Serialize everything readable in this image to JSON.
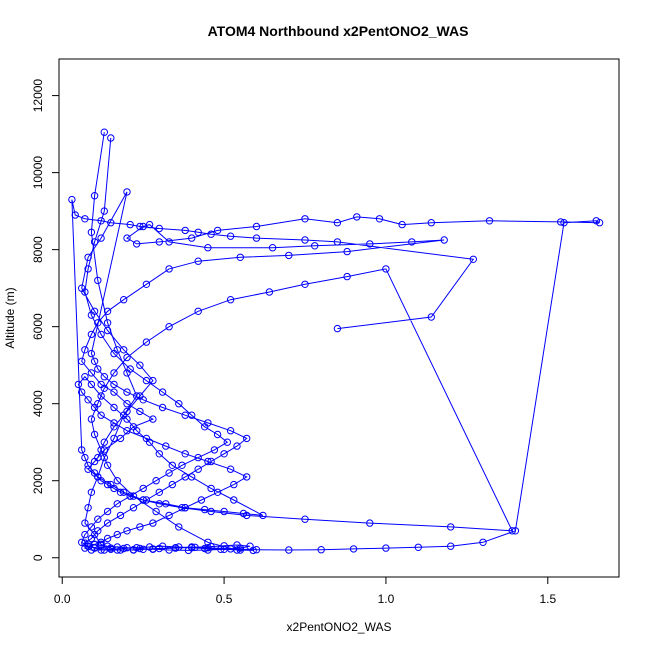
{
  "chart_data": {
    "type": "line",
    "title": "ATOM4 Northbound x2PentONO2_WAS",
    "xlabel": "x2PentONO2_WAS",
    "ylabel": "Altitude (m)",
    "xlim": [
      0.0,
      1.7
    ],
    "ylim": [
      0,
      13000
    ],
    "x_ticks": [
      0.0,
      0.5,
      1.0,
      1.5
    ],
    "x_tick_labels": [
      "0.0",
      "0.5",
      "1.0",
      "1.5"
    ],
    "y_ticks": [
      0,
      2000,
      4000,
      6000,
      8000,
      10000,
      12000
    ],
    "y_tick_labels": [
      "0",
      "2000",
      "4000",
      "6000",
      "8000",
      "10000",
      "12000"
    ],
    "grid": false,
    "legend": "none",
    "colors": {
      "series": "#0000ff",
      "axes": "#000000",
      "background": "#ffffff"
    },
    "series": [
      {
        "marker": "open-circle",
        "x": [
          0.13,
          0.1,
          0.09,
          0.11,
          0.14,
          0.17,
          0.2,
          0.23,
          0.19,
          0.16,
          0.13,
          0.11,
          0.09,
          0.08,
          0.07,
          0.1,
          0.12,
          0.15,
          0.18,
          0.22,
          0.25,
          0.3,
          0.35,
          0.4,
          0.45,
          0.52,
          0.6,
          0.7,
          0.8,
          0.9,
          1.0,
          1.1,
          1.2,
          1.3,
          1.4,
          1.55,
          1.65,
          1.66,
          1.54,
          1.32,
          1.14,
          1.05,
          0.98,
          0.91,
          0.85,
          0.75,
          0.6,
          0.48,
          0.4,
          0.3,
          0.23,
          0.2,
          0.25,
          0.27,
          0.33,
          0.45,
          0.65,
          0.78,
          0.95,
          1.08,
          1.18,
          0.88,
          0.7,
          0.55,
          0.42,
          0.33,
          0.26,
          0.19,
          0.14,
          0.11,
          0.09,
          0.07,
          0.06,
          0.09,
          0.12,
          0.16,
          0.2,
          0.24,
          0.28,
          0.22,
          0.18,
          0.13,
          0.1,
          0.08,
          0.11,
          0.15,
          0.19,
          0.25,
          0.32,
          0.38,
          0.44,
          0.5,
          0.56,
          0.62,
          0.53,
          0.46,
          0.4,
          0.34,
          0.3,
          0.27,
          0.23,
          0.2,
          0.16,
          0.12,
          0.09,
          0.07,
          0.05,
          0.06,
          0.08,
          0.1,
          0.12,
          0.16,
          0.2,
          0.26,
          0.32,
          0.38,
          0.45,
          0.52,
          0.57,
          0.53,
          0.48,
          0.43,
          0.38,
          0.33,
          0.28,
          0.24,
          0.2,
          0.17,
          0.14,
          0.12,
          0.1,
          0.08,
          0.07,
          0.09,
          0.12,
          0.15,
          0.19,
          0.23,
          0.27,
          0.31,
          0.36,
          0.4,
          0.44,
          0.49,
          0.55,
          0.59,
          0.54,
          0.45,
          0.36,
          0.29,
          0.22,
          0.17,
          0.14,
          0.12,
          0.1,
          0.09,
          0.11,
          0.13,
          0.16,
          0.2,
          0.26,
          0.33,
          0.42,
          0.52,
          0.64,
          0.75,
          0.88,
          1.0,
          1.39,
          1.2,
          0.95,
          0.75,
          0.57,
          0.46,
          0.37,
          0.3,
          0.25,
          0.21,
          0.18,
          0.16,
          0.14,
          0.12,
          0.1,
          0.08,
          0.07,
          0.06,
          0.03,
          0.04,
          0.07,
          0.12,
          0.15,
          0.21,
          0.24,
          0.3,
          0.38,
          0.42,
          0.46,
          0.52,
          0.6,
          0.75,
          0.85,
          1.27,
          1.14,
          0.85
        ],
        "y": [
          11050,
          9400,
          8450,
          7200,
          6100,
          5400,
          4800,
          4200,
          3700,
          3100,
          2600,
          2100,
          1700,
          1300,
          900,
          600,
          350,
          250,
          200,
          200,
          220,
          240,
          260,
          280,
          260,
          230,
          210,
          200,
          210,
          230,
          250,
          270,
          300,
          400,
          700,
          8700,
          8750,
          8700,
          8720,
          8750,
          8700,
          8650,
          8800,
          8850,
          8700,
          8800,
          8600,
          8500,
          8300,
          8200,
          8150,
          8300,
          8600,
          8650,
          8200,
          8050,
          8050,
          8100,
          8150,
          8200,
          8250,
          7950,
          7850,
          7800,
          7700,
          7500,
          7100,
          6700,
          6400,
          6100,
          5800,
          5400,
          5100,
          4800,
          4500,
          4300,
          4000,
          3800,
          3600,
          3400,
          3100,
          2800,
          2500,
          2300,
          2100,
          1900,
          1700,
          1500,
          1400,
          1300,
          1250,
          1200,
          1150,
          1100,
          1500,
          1800,
          2100,
          2400,
          2700,
          3000,
          3300,
          3600,
          3900,
          4200,
          4500,
          4700,
          4500,
          4300,
          4100,
          3900,
          3700,
          3500,
          3300,
          3100,
          2900,
          2700,
          2500,
          2300,
          2100,
          1900,
          1700,
          1500,
          1300,
          1100,
          900,
          800,
          700,
          600,
          500,
          400,
          350,
          300,
          250,
          200,
          200,
          220,
          240,
          260,
          280,
          300,
          280,
          260,
          240,
          220,
          200,
          190,
          200,
          400,
          800,
          1200,
          1600,
          2000,
          2400,
          2800,
          3200,
          3600,
          4000,
          4400,
          4800,
          5200,
          5600,
          6000,
          6400,
          6700,
          6900,
          7100,
          7300,
          7500,
          700,
          800,
          900,
          1000,
          1100,
          1200,
          1300,
          1400,
          1500,
          1600,
          1700,
          1800,
          1900,
          2000,
          2200,
          2400,
          2600,
          2800,
          9300,
          8900,
          8800,
          8750,
          8700,
          8650,
          8600,
          8550,
          8500,
          8450,
          8400,
          8350,
          8300,
          8250,
          8200,
          7750,
          6250,
          5950
        ]
      },
      {
        "marker": "open-circle",
        "x": [
          0.15,
          0.13,
          0.1,
          0.08,
          0.07,
          0.09,
          0.12,
          0.16,
          0.21,
          0.26,
          0.31,
          0.36,
          0.4,
          0.44,
          0.48,
          0.51,
          0.47,
          0.42,
          0.37,
          0.33,
          0.29,
          0.25,
          0.21,
          0.17,
          0.14,
          0.11,
          0.09,
          0.07,
          0.06,
          0.08,
          0.1,
          0.13,
          0.17,
          0.22,
          0.28,
          0.35,
          0.41,
          0.46,
          0.5,
          0.54,
          0.58,
          0.55,
          0.5,
          0.45,
          0.39,
          0.33,
          0.28,
          0.24,
          0.2,
          0.17,
          0.14,
          0.12,
          0.1,
          0.08,
          0.07,
          0.09,
          0.11,
          0.14,
          0.18,
          0.22,
          0.26,
          0.3,
          0.34,
          0.38,
          0.42,
          0.46,
          0.5,
          0.54,
          0.57,
          0.52,
          0.45,
          0.38,
          0.31,
          0.25,
          0.2,
          0.16,
          0.13,
          0.11,
          0.1,
          0.09,
          0.2,
          0.12,
          0.08,
          0.06,
          0.1,
          0.14,
          0.19,
          0.24,
          0.28,
          0.24,
          0.2,
          0.16,
          0.13,
          0.11
        ],
        "y": [
          10900,
          9000,
          8200,
          7500,
          6900,
          6300,
          5800,
          5300,
          4900,
          4600,
          4300,
          4000,
          3700,
          3400,
          3200,
          3000,
          2800,
          2600,
          2400,
          2200,
          2000,
          1800,
          1600,
          1400,
          1200,
          1000,
          800,
          600,
          400,
          300,
          250,
          200,
          200,
          210,
          230,
          250,
          270,
          290,
          310,
          330,
          300,
          250,
          220,
          200,
          190,
          200,
          220,
          240,
          260,
          280,
          300,
          320,
          340,
          360,
          380,
          500,
          700,
          900,
          1100,
          1300,
          1500,
          1700,
          1900,
          2100,
          2300,
          2500,
          2700,
          2900,
          3100,
          3300,
          3500,
          3700,
          3900,
          4100,
          4300,
          4500,
          4700,
          4900,
          5100,
          5300,
          9500,
          8300,
          7800,
          7000,
          6400,
          5900,
          5400,
          5000,
          4600,
          4200,
          3800,
          3400,
          3000,
          2600
        ]
      }
    ]
  }
}
